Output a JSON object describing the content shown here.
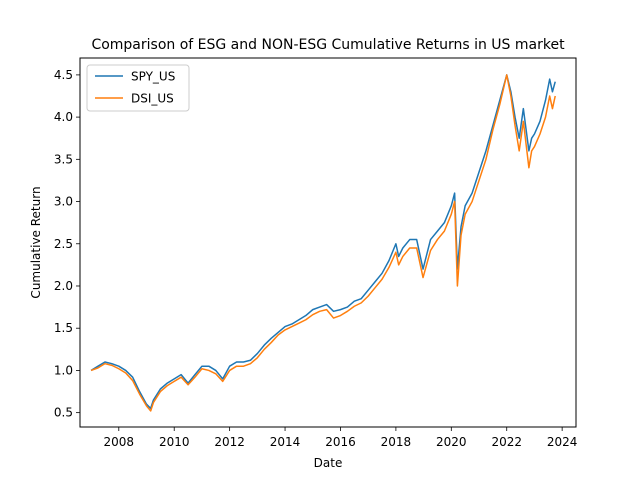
{
  "chart_data": {
    "type": "line",
    "title": "Comparison of ESG and NON-ESG Cumulative Returns in US market",
    "xlabel": "Date",
    "ylabel": "Cumulative Return",
    "xlim": [
      2006.6,
      2024.5
    ],
    "ylim": [
      0.33,
      4.7
    ],
    "xticks": [
      2008,
      2010,
      2012,
      2014,
      2016,
      2018,
      2020,
      2022,
      2024
    ],
    "yticks": [
      0.5,
      1.0,
      1.5,
      2.0,
      2.5,
      3.0,
      3.5,
      4.0,
      4.5
    ],
    "grid": false,
    "legend_position": "top-left",
    "x": [
      2007.0,
      2007.25,
      2007.5,
      2007.75,
      2008.0,
      2008.25,
      2008.5,
      2008.75,
      2009.0,
      2009.15,
      2009.25,
      2009.5,
      2009.75,
      2010.0,
      2010.25,
      2010.5,
      2010.75,
      2011.0,
      2011.25,
      2011.5,
      2011.75,
      2012.0,
      2012.25,
      2012.5,
      2012.75,
      2013.0,
      2013.25,
      2013.5,
      2013.75,
      2014.0,
      2014.25,
      2014.5,
      2014.75,
      2015.0,
      2015.25,
      2015.5,
      2015.75,
      2016.0,
      2016.25,
      2016.5,
      2016.75,
      2017.0,
      2017.25,
      2017.5,
      2017.75,
      2018.0,
      2018.1,
      2018.25,
      2018.5,
      2018.75,
      2018.98,
      2019.25,
      2019.5,
      2019.75,
      2020.0,
      2020.12,
      2020.22,
      2020.35,
      2020.5,
      2020.75,
      2021.0,
      2021.25,
      2021.5,
      2021.75,
      2022.0,
      2022.15,
      2022.3,
      2022.45,
      2022.6,
      2022.8,
      2022.9,
      2023.0,
      2023.2,
      2023.4,
      2023.55,
      2023.65,
      2023.75
    ],
    "series": [
      {
        "name": "SPY_US",
        "color": "#1f77b4",
        "values": [
          1.0,
          1.05,
          1.1,
          1.08,
          1.05,
          1.0,
          0.92,
          0.75,
          0.6,
          0.55,
          0.65,
          0.78,
          0.85,
          0.9,
          0.95,
          0.85,
          0.95,
          1.05,
          1.05,
          1.0,
          0.9,
          1.05,
          1.1,
          1.1,
          1.12,
          1.2,
          1.3,
          1.38,
          1.45,
          1.52,
          1.55,
          1.6,
          1.65,
          1.72,
          1.75,
          1.78,
          1.7,
          1.72,
          1.75,
          1.82,
          1.85,
          1.95,
          2.05,
          2.15,
          2.3,
          2.5,
          2.35,
          2.45,
          2.55,
          2.55,
          2.2,
          2.55,
          2.65,
          2.75,
          2.95,
          3.1,
          2.2,
          2.7,
          2.95,
          3.1,
          3.35,
          3.6,
          3.9,
          4.2,
          4.5,
          4.3,
          4.0,
          3.75,
          4.1,
          3.6,
          3.75,
          3.8,
          3.95,
          4.2,
          4.45,
          4.3,
          4.42
        ]
      },
      {
        "name": "DSI_US",
        "color": "#ff7f0e",
        "values": [
          1.0,
          1.03,
          1.08,
          1.06,
          1.02,
          0.97,
          0.88,
          0.72,
          0.58,
          0.52,
          0.62,
          0.75,
          0.82,
          0.87,
          0.92,
          0.83,
          0.92,
          1.02,
          1.0,
          0.96,
          0.87,
          1.0,
          1.05,
          1.05,
          1.08,
          1.15,
          1.25,
          1.33,
          1.42,
          1.48,
          1.52,
          1.56,
          1.6,
          1.66,
          1.7,
          1.72,
          1.62,
          1.65,
          1.7,
          1.76,
          1.8,
          1.88,
          1.98,
          2.08,
          2.22,
          2.4,
          2.25,
          2.35,
          2.45,
          2.45,
          2.1,
          2.42,
          2.55,
          2.65,
          2.85,
          3.0,
          2.0,
          2.6,
          2.85,
          3.0,
          3.25,
          3.5,
          3.85,
          4.15,
          4.5,
          4.25,
          3.9,
          3.6,
          3.95,
          3.4,
          3.6,
          3.65,
          3.8,
          4.0,
          4.25,
          4.1,
          4.25
        ]
      }
    ]
  }
}
